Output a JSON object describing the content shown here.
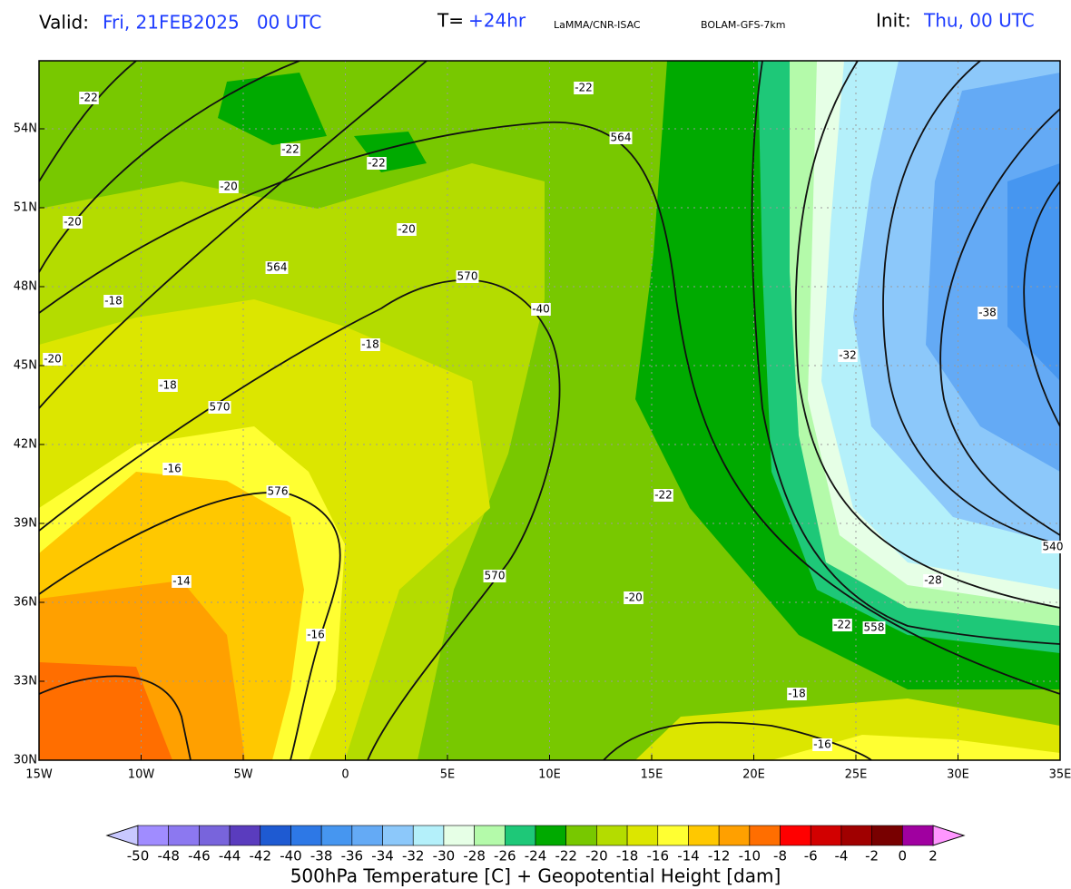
{
  "header": {
    "valid_label": "Valid:",
    "valid_value": "Fri, 21FEB2025   00 UTC",
    "step_label": "T=",
    "step_value": "+24hr",
    "source": "LaMMA/CNR-ISAC",
    "model": "BOLAM-GFS-7km",
    "init_label": "Init:",
    "init_value": "Thu, 00 UTC"
  },
  "map": {
    "lat_labels": [
      "54N",
      "51N",
      "48N",
      "45N",
      "42N",
      "39N",
      "36N",
      "33N",
      "30N"
    ],
    "lon_labels": [
      "15W",
      "10W",
      "5W",
      "0",
      "5E",
      "10E",
      "15E",
      "20E",
      "25E",
      "30E",
      "35E"
    ],
    "temperature_labels": [
      "-22",
      "-22",
      "-22",
      "-22",
      "-20",
      "-20",
      "-20",
      "-20",
      "-20",
      "-18",
      "-18",
      "-18",
      "-18",
      "-16",
      "-16",
      "-16",
      "-14",
      "-40",
      "-22",
      "-22",
      "-32",
      "-38",
      "-28"
    ],
    "height_labels": [
      "564",
      "564",
      "570",
      "570",
      "570",
      "576",
      "558",
      "540"
    ]
  },
  "colorbar": {
    "labels": [
      "-50",
      "-48",
      "-46",
      "-44",
      "-42",
      "-40",
      "-38",
      "-36",
      "-34",
      "-32",
      "-30",
      "-28",
      "-26",
      "-24",
      "-22",
      "-20",
      "-18",
      "-16",
      "-14",
      "-12",
      "-10",
      "-8",
      "-6",
      "-4",
      "-2",
      "0",
      "2"
    ],
    "colors": [
      "#a08cff",
      "#8c78f0",
      "#7864dc",
      "#5a3cbe",
      "#1e5ad2",
      "#2d78e6",
      "#4696f0",
      "#64aaf5",
      "#8cc8fa",
      "#b4f0fa",
      "#e6ffe6",
      "#b4faaa",
      "#1ec878",
      "#00aa00",
      "#78c800",
      "#b4dc00",
      "#dce600",
      "#ffff32",
      "#ffc800",
      "#ffa000",
      "#ff6e00",
      "#ff0000",
      "#d20000",
      "#a00000",
      "#780000",
      "#a000a0",
      "#ff00ff"
    ],
    "low_color": "#c8c8ff",
    "high_color": "#ff96ff",
    "title": "500hPa Temperature [C] + Geopotential Height [dam]"
  }
}
